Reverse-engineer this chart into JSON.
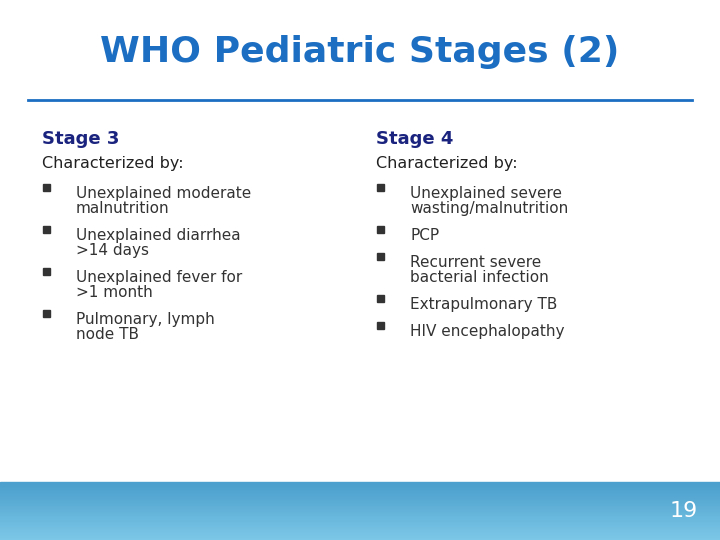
{
  "title": "WHO Pediatric Stages (2)",
  "title_color": "#1B6EC2",
  "title_fontsize": 26,
  "bg_color": "#FFFFFF",
  "footer_color_left": "#7DC8E8",
  "footer_color_right": "#4A9FCC",
  "divider_color": "#1B6EC2",
  "stage3_header": "Stage 3",
  "stage4_header": "Stage 4",
  "stage_header_color": "#1A237E",
  "stage_header_fontsize": 13,
  "characterized_text": "Characterized by:",
  "characterized_fontsize": 11.5,
  "characterized_color": "#222222",
  "bullet_color": "#333333",
  "bullet_fontsize": 11,
  "stage3_bullets": [
    "Unexplained moderate\nmalnutrition",
    "Unexplained diarrhea\n>14 days",
    "Unexplained fever for\n>1 month",
    "Pulmonary, lymph\nnode TB"
  ],
  "stage4_bullets": [
    "Unexplained severe\nwasting/malnutrition",
    "PCP",
    "Recurrent severe\nbacterial infection",
    "Extrapulmonary TB",
    "HIV encephalopathy"
  ],
  "page_number": "19",
  "page_number_color": "#FFFFFF",
  "page_number_fontsize": 16
}
